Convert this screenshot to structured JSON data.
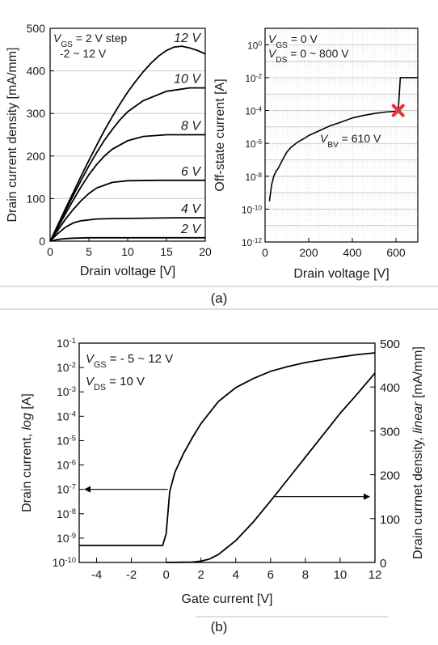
{
  "panels": [
    {
      "label": "(a)"
    },
    {
      "label": "(b)"
    }
  ],
  "colors": {
    "curve": "#000000",
    "grid": "#c8c8c8",
    "minor_grid": "#e4e4e4",
    "marker": "#e8333a",
    "divider": "#bdbdbd"
  },
  "chart_data": [
    {
      "type": "line",
      "panel": "(a) left",
      "xlabel": "Drain voltage [V]",
      "ylabel": "Drain current density [mA/mm]",
      "xlim": [
        0,
        20
      ],
      "ylim": [
        0,
        500
      ],
      "x_ticks": [
        0,
        5,
        10,
        15,
        20
      ],
      "y_ticks": [
        0,
        100,
        200,
        300,
        400,
        500
      ],
      "grid": "horizontal",
      "annotation_line1": "V_GS = 2 V step",
      "annotation_line2": "-2 ~ 12 V",
      "series": [
        {
          "name": "2 V",
          "x": [
            0,
            1,
            2,
            3,
            5,
            8,
            12,
            16,
            20
          ],
          "values": [
            0,
            4,
            6,
            7,
            8,
            8,
            8,
            8,
            8
          ]
        },
        {
          "name": "4 V",
          "x": [
            0,
            1,
            2,
            3,
            4,
            6,
            8,
            12,
            16,
            20
          ],
          "values": [
            0,
            18,
            33,
            43,
            48,
            52,
            53,
            54,
            55,
            55
          ]
        },
        {
          "name": "6 V",
          "x": [
            0,
            1,
            2,
            3,
            4,
            5,
            6,
            8,
            10,
            14,
            20
          ],
          "values": [
            0,
            26,
            52,
            75,
            95,
            112,
            125,
            138,
            142,
            143,
            143
          ]
        },
        {
          "name": "8 V",
          "x": [
            0,
            1,
            2,
            3,
            4,
            5,
            6,
            7,
            8,
            10,
            12,
            15,
            18,
            20
          ],
          "values": [
            0,
            32,
            65,
            97,
            128,
            156,
            180,
            200,
            216,
            236,
            246,
            250,
            250,
            250
          ]
        },
        {
          "name": "10 V",
          "x": [
            0,
            1,
            2,
            3,
            4,
            5,
            6,
            7,
            8,
            9,
            10,
            12,
            15,
            18,
            20
          ],
          "values": [
            0,
            35,
            72,
            108,
            143,
            177,
            208,
            237,
            262,
            285,
            304,
            330,
            352,
            360,
            360
          ]
        },
        {
          "name": "12 V",
          "x": [
            0,
            1,
            2,
            3,
            4,
            5,
            6,
            7,
            8,
            9,
            10,
            11,
            12,
            13,
            14,
            15,
            16,
            17,
            18,
            19,
            20
          ],
          "values": [
            0,
            38,
            77,
            115,
            153,
            190,
            225,
            260,
            292,
            322,
            350,
            375,
            398,
            418,
            435,
            448,
            456,
            458,
            454,
            448,
            440
          ]
        }
      ]
    },
    {
      "type": "line",
      "panel": "(a) right",
      "xlabel": "Drain voltage [V]",
      "ylabel": "Off-state current [A]",
      "yscale": "log",
      "xlim": [
        0,
        700
      ],
      "ylim": [
        1e-12,
        10
      ],
      "x_ticks": [
        0,
        200,
        400,
        600
      ],
      "y_tick_exponents": [
        -12,
        -10,
        -8,
        -6,
        -4,
        -2,
        0
      ],
      "grid": "on",
      "annotation_line1": "V_GS = 0 V",
      "annotation_line2": "V_DS = 0 ~ 800 V",
      "breakdown_label": "V_BV = 610 V",
      "breakdown_point": {
        "x": 610,
        "y": 0.0001
      },
      "series": [
        {
          "name": "",
          "x": [
            20,
            25,
            30,
            40,
            50,
            60,
            80,
            100,
            120,
            150,
            180,
            200,
            250,
            300,
            350,
            400,
            450,
            500,
            550,
            600,
            610,
            612,
            615,
            620,
            700
          ],
          "values": [
            3e-10,
            1e-09,
            3e-09,
            1e-08,
            2e-08,
            3e-08,
            1e-07,
            3e-07,
            6e-07,
            1.2e-06,
            2e-06,
            3e-06,
            6e-06,
            1.2e-05,
            2e-05,
            3.5e-05,
            5e-05,
            6.5e-05,
            8e-05,
            9e-05,
            0.0001,
            0.0002,
            0.001,
            0.01,
            0.01
          ]
        }
      ]
    },
    {
      "type": "line",
      "panel": "(b)",
      "xlabel": "Gate current [V]",
      "ylabel_left_prefix": "Drain current, ",
      "ylabel_left_italic": "log",
      "ylabel_left_suffix": " [A]",
      "ylabel_right_prefix": "Drain currnet density, ",
      "ylabel_right_italic": "linear",
      "ylabel_right_suffix": " [mA/mm]",
      "xlim": [
        -5,
        12
      ],
      "ylim_left": [
        1e-10,
        0.1
      ],
      "ylim_right": [
        0,
        500
      ],
      "x_ticks": [
        -4,
        -2,
        0,
        2,
        4,
        6,
        8,
        10,
        12
      ],
      "y_left_tick_exponents": [
        -10,
        -9,
        -8,
        -7,
        -6,
        -5,
        -4,
        -3,
        -2,
        -1
      ],
      "y_right_ticks": [
        0,
        100,
        200,
        300,
        400,
        500
      ],
      "annotation_line1": "V_GS = - 5 ~ 12 V",
      "annotation_line2": "V_DS = 10 V",
      "series": [
        {
          "name": "",
          "axis": "left",
          "x": [
            -5,
            -4,
            -3,
            -2,
            -1,
            -0.2,
            0,
            0.2,
            0.5,
            1,
            1.5,
            2,
            3,
            4,
            5,
            6,
            7,
            8,
            9,
            10,
            11,
            12
          ],
          "values": [
            5e-10,
            5e-10,
            5e-10,
            5e-10,
            5e-10,
            5e-10,
            1.5e-09,
            8e-08,
            5e-07,
            3e-06,
            1.3e-05,
            5e-05,
            0.0004,
            0.0015,
            0.0035,
            0.007,
            0.011,
            0.016,
            0.021,
            0.027,
            0.034,
            0.04
          ]
        },
        {
          "name": "",
          "axis": "right",
          "x": [
            0,
            1,
            1.5,
            2,
            2.5,
            3,
            4,
            5,
            6,
            7,
            8,
            9,
            10,
            11,
            12
          ],
          "values": [
            0,
            0.5,
            1,
            3,
            8,
            18,
            50,
            92,
            140,
            190,
            240,
            290,
            340,
            385,
            432
          ]
        }
      ]
    }
  ]
}
